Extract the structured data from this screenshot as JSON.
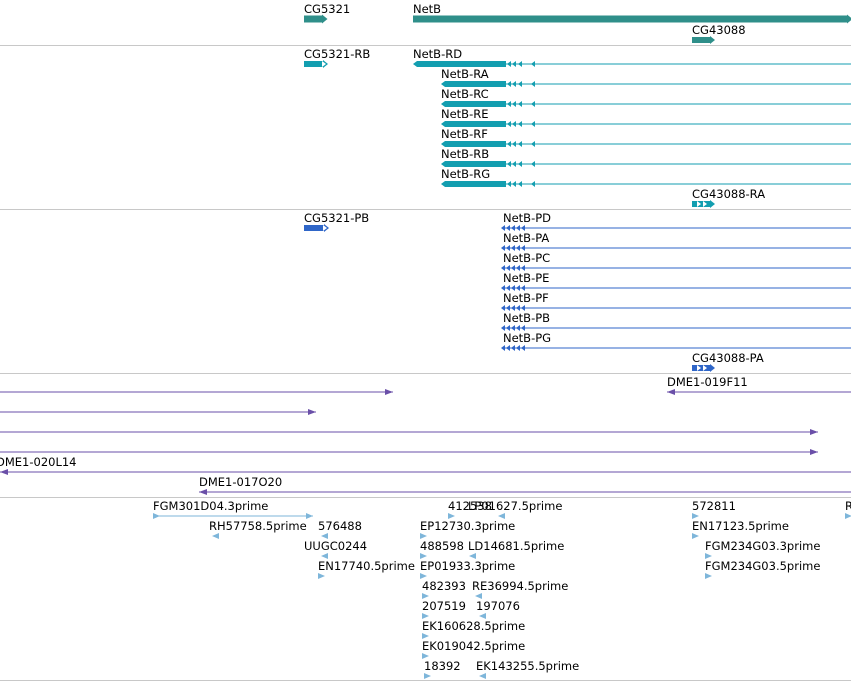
{
  "colors": {
    "gene": "#2f8f8a",
    "transcript": "#139eb0",
    "protein": "#2f66c8",
    "clone": "#6a4fa8",
    "est": "#7eb6da",
    "divider": "#c8c8c8"
  },
  "tracks": [
    {
      "name": "gene-track",
      "features": [
        {
          "label": "CG5321",
          "color": "gene"
        },
        {
          "label": "NetB",
          "color": "gene"
        },
        {
          "label": "CG43088",
          "color": "gene"
        }
      ]
    },
    {
      "name": "transcript-track",
      "features": [
        {
          "label": "CG5321-RB",
          "color": "transcript"
        },
        {
          "label": "NetB-RD",
          "color": "transcript"
        },
        {
          "label": "NetB-RA",
          "color": "transcript"
        },
        {
          "label": "NetB-RC",
          "color": "transcript"
        },
        {
          "label": "NetB-RE",
          "color": "transcript"
        },
        {
          "label": "NetB-RF",
          "color": "transcript"
        },
        {
          "label": "NetB-RB",
          "color": "transcript"
        },
        {
          "label": "NetB-RG",
          "color": "transcript"
        },
        {
          "label": "CG43088-RA",
          "color": "transcript"
        }
      ]
    },
    {
      "name": "protein-track",
      "features": [
        {
          "label": "CG5321-PB",
          "color": "protein"
        },
        {
          "label": "NetB-PD",
          "color": "protein"
        },
        {
          "label": "NetB-PA",
          "color": "protein"
        },
        {
          "label": "NetB-PC",
          "color": "protein"
        },
        {
          "label": "NetB-PE",
          "color": "protein"
        },
        {
          "label": "NetB-PF",
          "color": "protein"
        },
        {
          "label": "NetB-PB",
          "color": "protein"
        },
        {
          "label": "NetB-PG",
          "color": "protein"
        },
        {
          "label": "CG43088-PA",
          "color": "protein"
        }
      ]
    },
    {
      "name": "clone-track",
      "features": [
        {
          "label": "DME1-019F11",
          "color": "clone"
        },
        {
          "label": "DME1-020L14",
          "color": "clone"
        },
        {
          "label": "DME1-017O20",
          "color": "clone"
        }
      ]
    },
    {
      "name": "est-track",
      "features": [
        {
          "label": "FGM301D04.3prime",
          "color": "est"
        },
        {
          "label": "412538",
          "color": "est"
        },
        {
          "label": "LP01627.5prime",
          "color": "est"
        },
        {
          "label": "572811",
          "color": "est"
        },
        {
          "label": "R",
          "color": "est"
        },
        {
          "label": "RH57758.5prime",
          "color": "est"
        },
        {
          "label": "576488",
          "color": "est"
        },
        {
          "label": "EP12730.3prime",
          "color": "est"
        },
        {
          "label": "EN17123.5prime",
          "color": "est"
        },
        {
          "label": "UUGC0244",
          "color": "est"
        },
        {
          "label": "488598",
          "color": "est"
        },
        {
          "label": "LD14681.5prime",
          "color": "est"
        },
        {
          "label": "FGM234G03.3prime",
          "color": "est"
        },
        {
          "label": "EN17740.5prime",
          "color": "est"
        },
        {
          "label": "EP01933.3prime",
          "color": "est"
        },
        {
          "label": "FGM234G03.5prime",
          "color": "est"
        },
        {
          "label": "482393",
          "color": "est"
        },
        {
          "label": "RE36994.5prime",
          "color": "est"
        },
        {
          "label": "207519",
          "color": "est"
        },
        {
          "label": "197076",
          "color": "est"
        },
        {
          "label": "EK160628.5prime",
          "color": "est"
        },
        {
          "label": "EK019042.5prime",
          "color": "est"
        },
        {
          "label": "18392",
          "color": "est"
        },
        {
          "label": "EK143255.5prime",
          "color": "est"
        }
      ]
    }
  ]
}
